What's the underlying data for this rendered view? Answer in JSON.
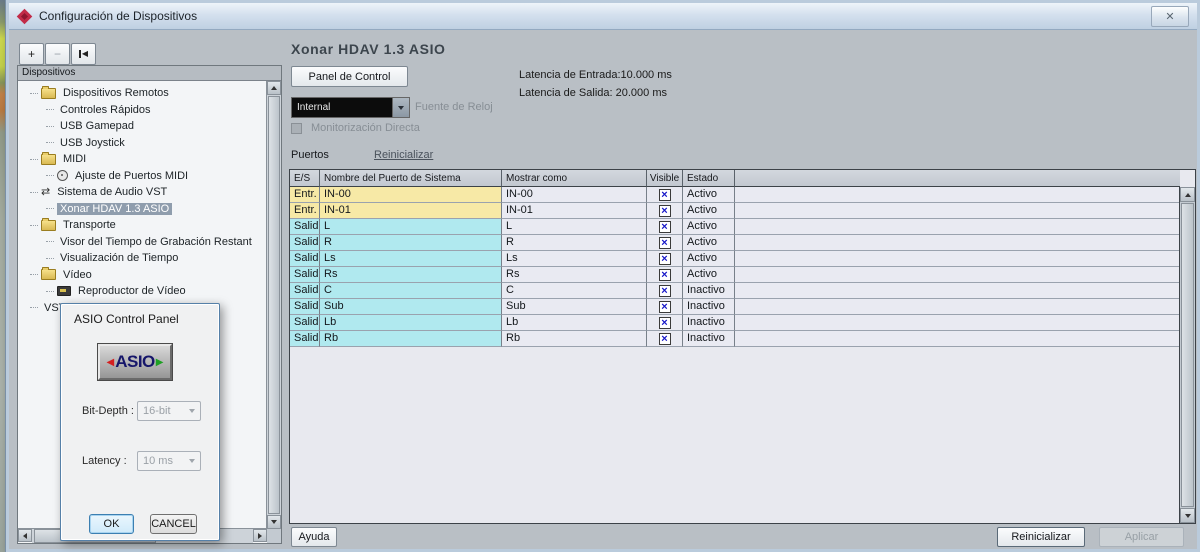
{
  "window": {
    "title": "Configuración de Dispositivos"
  },
  "icons": {
    "close": "✕",
    "go_first_arrow": "◀",
    "checkbox_mark": "×",
    "audio_system": "⇄",
    "asio_left_arrow": "◀",
    "asio_right_arrow": "▶"
  },
  "toolbar": {
    "add_label": "+",
    "remove_label": "−"
  },
  "tree": {
    "header": "Dispositivos",
    "items": [
      {
        "label": "Dispositivos Remotos",
        "icon": "folder-icon",
        "depth": 1,
        "selected": false
      },
      {
        "label": "Controles Rápidos",
        "icon": null,
        "depth": 2,
        "selected": false
      },
      {
        "label": "USB Gamepad",
        "icon": null,
        "depth": 2,
        "selected": false
      },
      {
        "label": "USB Joystick",
        "icon": null,
        "depth": 2,
        "selected": false
      },
      {
        "label": "MIDI",
        "icon": "folder-icon",
        "depth": 1,
        "selected": false
      },
      {
        "label": "Ajuste de Puertos MIDI",
        "icon": "midi-ports-icon",
        "depth": 2,
        "selected": false
      },
      {
        "label": "Sistema de Audio VST",
        "icon": "audio-system-icon",
        "depth": 1,
        "selected": false
      },
      {
        "label": "Xonar HDAV 1.3 ASIO",
        "icon": null,
        "depth": 2,
        "selected": true
      },
      {
        "label": "Transporte",
        "icon": "folder-icon",
        "depth": 1,
        "selected": false
      },
      {
        "label": "Visor del Tiempo de Grabación Restant",
        "icon": null,
        "depth": 2,
        "selected": false
      },
      {
        "label": "Visualización de Tiempo",
        "icon": null,
        "depth": 2,
        "selected": false
      },
      {
        "label": "Vídeo",
        "icon": "folder-icon",
        "depth": 1,
        "selected": false
      },
      {
        "label": "Reproductor de Vídeo",
        "icon": "video-player-icon",
        "depth": 2,
        "selected": false
      },
      {
        "label": "VST System Link",
        "icon": null,
        "depth": 1,
        "selected": false
      }
    ]
  },
  "asio_dialog": {
    "title": "ASIO Control Panel",
    "logo_text": "ASIO",
    "bit_depth_label": "Bit-Depth :",
    "bit_depth_value": "16-bit",
    "latency_label": "Latency :",
    "latency_value": "10 ms",
    "ok_label": "OK",
    "cancel_label": "CANCEL"
  },
  "main": {
    "device_title": "Xonar HDAV 1.3 ASIO",
    "control_panel_button": "Panel de Control",
    "input_latency_label": "Latencia de Entrada:",
    "input_latency_value": "10.000 ms",
    "output_latency_label": "Latencia de Salida:",
    "output_latency_value": "20.000 ms",
    "clock_source_value": "Internal",
    "clock_source_label": "Fuente de Reloj",
    "direct_monitoring_label": "Monitorización Directa",
    "ports_label": "Puertos",
    "reset_link": "Reinicializar",
    "table": {
      "headers": [
        "E/S",
        "Nombre del Puerto de Sistema",
        "Mostrar como",
        "Visible",
        "Estado"
      ],
      "rows": [
        {
          "io": "Entr.",
          "name": "IN-00",
          "show_as": "IN-00",
          "visible": true,
          "state": "Activo",
          "type": "input"
        },
        {
          "io": "Entr.",
          "name": "IN-01",
          "show_as": "IN-01",
          "visible": true,
          "state": "Activo",
          "type": "input"
        },
        {
          "io": "Salida",
          "name": "L",
          "show_as": "L",
          "visible": true,
          "state": "Activo",
          "type": "output"
        },
        {
          "io": "Salida",
          "name": "R",
          "show_as": "R",
          "visible": true,
          "state": "Activo",
          "type": "output"
        },
        {
          "io": "Salida",
          "name": "Ls",
          "show_as": "Ls",
          "visible": true,
          "state": "Activo",
          "type": "output"
        },
        {
          "io": "Salida",
          "name": "Rs",
          "show_as": "Rs",
          "visible": true,
          "state": "Activo",
          "type": "output"
        },
        {
          "io": "Salida",
          "name": "C",
          "show_as": "C",
          "visible": true,
          "state": "Inactivo",
          "type": "output"
        },
        {
          "io": "Salida",
          "name": "Sub",
          "show_as": "Sub",
          "visible": true,
          "state": "Inactivo",
          "type": "output"
        },
        {
          "io": "Salida",
          "name": "Lb",
          "show_as": "Lb",
          "visible": true,
          "state": "Inactivo",
          "type": "output"
        },
        {
          "io": "Salida",
          "name": "Rb",
          "show_as": "Rb",
          "visible": true,
          "state": "Inactivo",
          "type": "output"
        }
      ]
    },
    "help_button": "Ayuda",
    "reset_button": "Reinicializar",
    "apply_button": "Aplicar"
  },
  "colors": {
    "input_row": "#f7e9a6",
    "output_row": "#b0e9ef",
    "selection": "#8f9dad",
    "checkbox_blue": "#1616c8",
    "asio_navy": "#16166a",
    "asio_red": "#d42020",
    "asio_green": "#1fa024",
    "title_icon_red": "#c22b48"
  }
}
